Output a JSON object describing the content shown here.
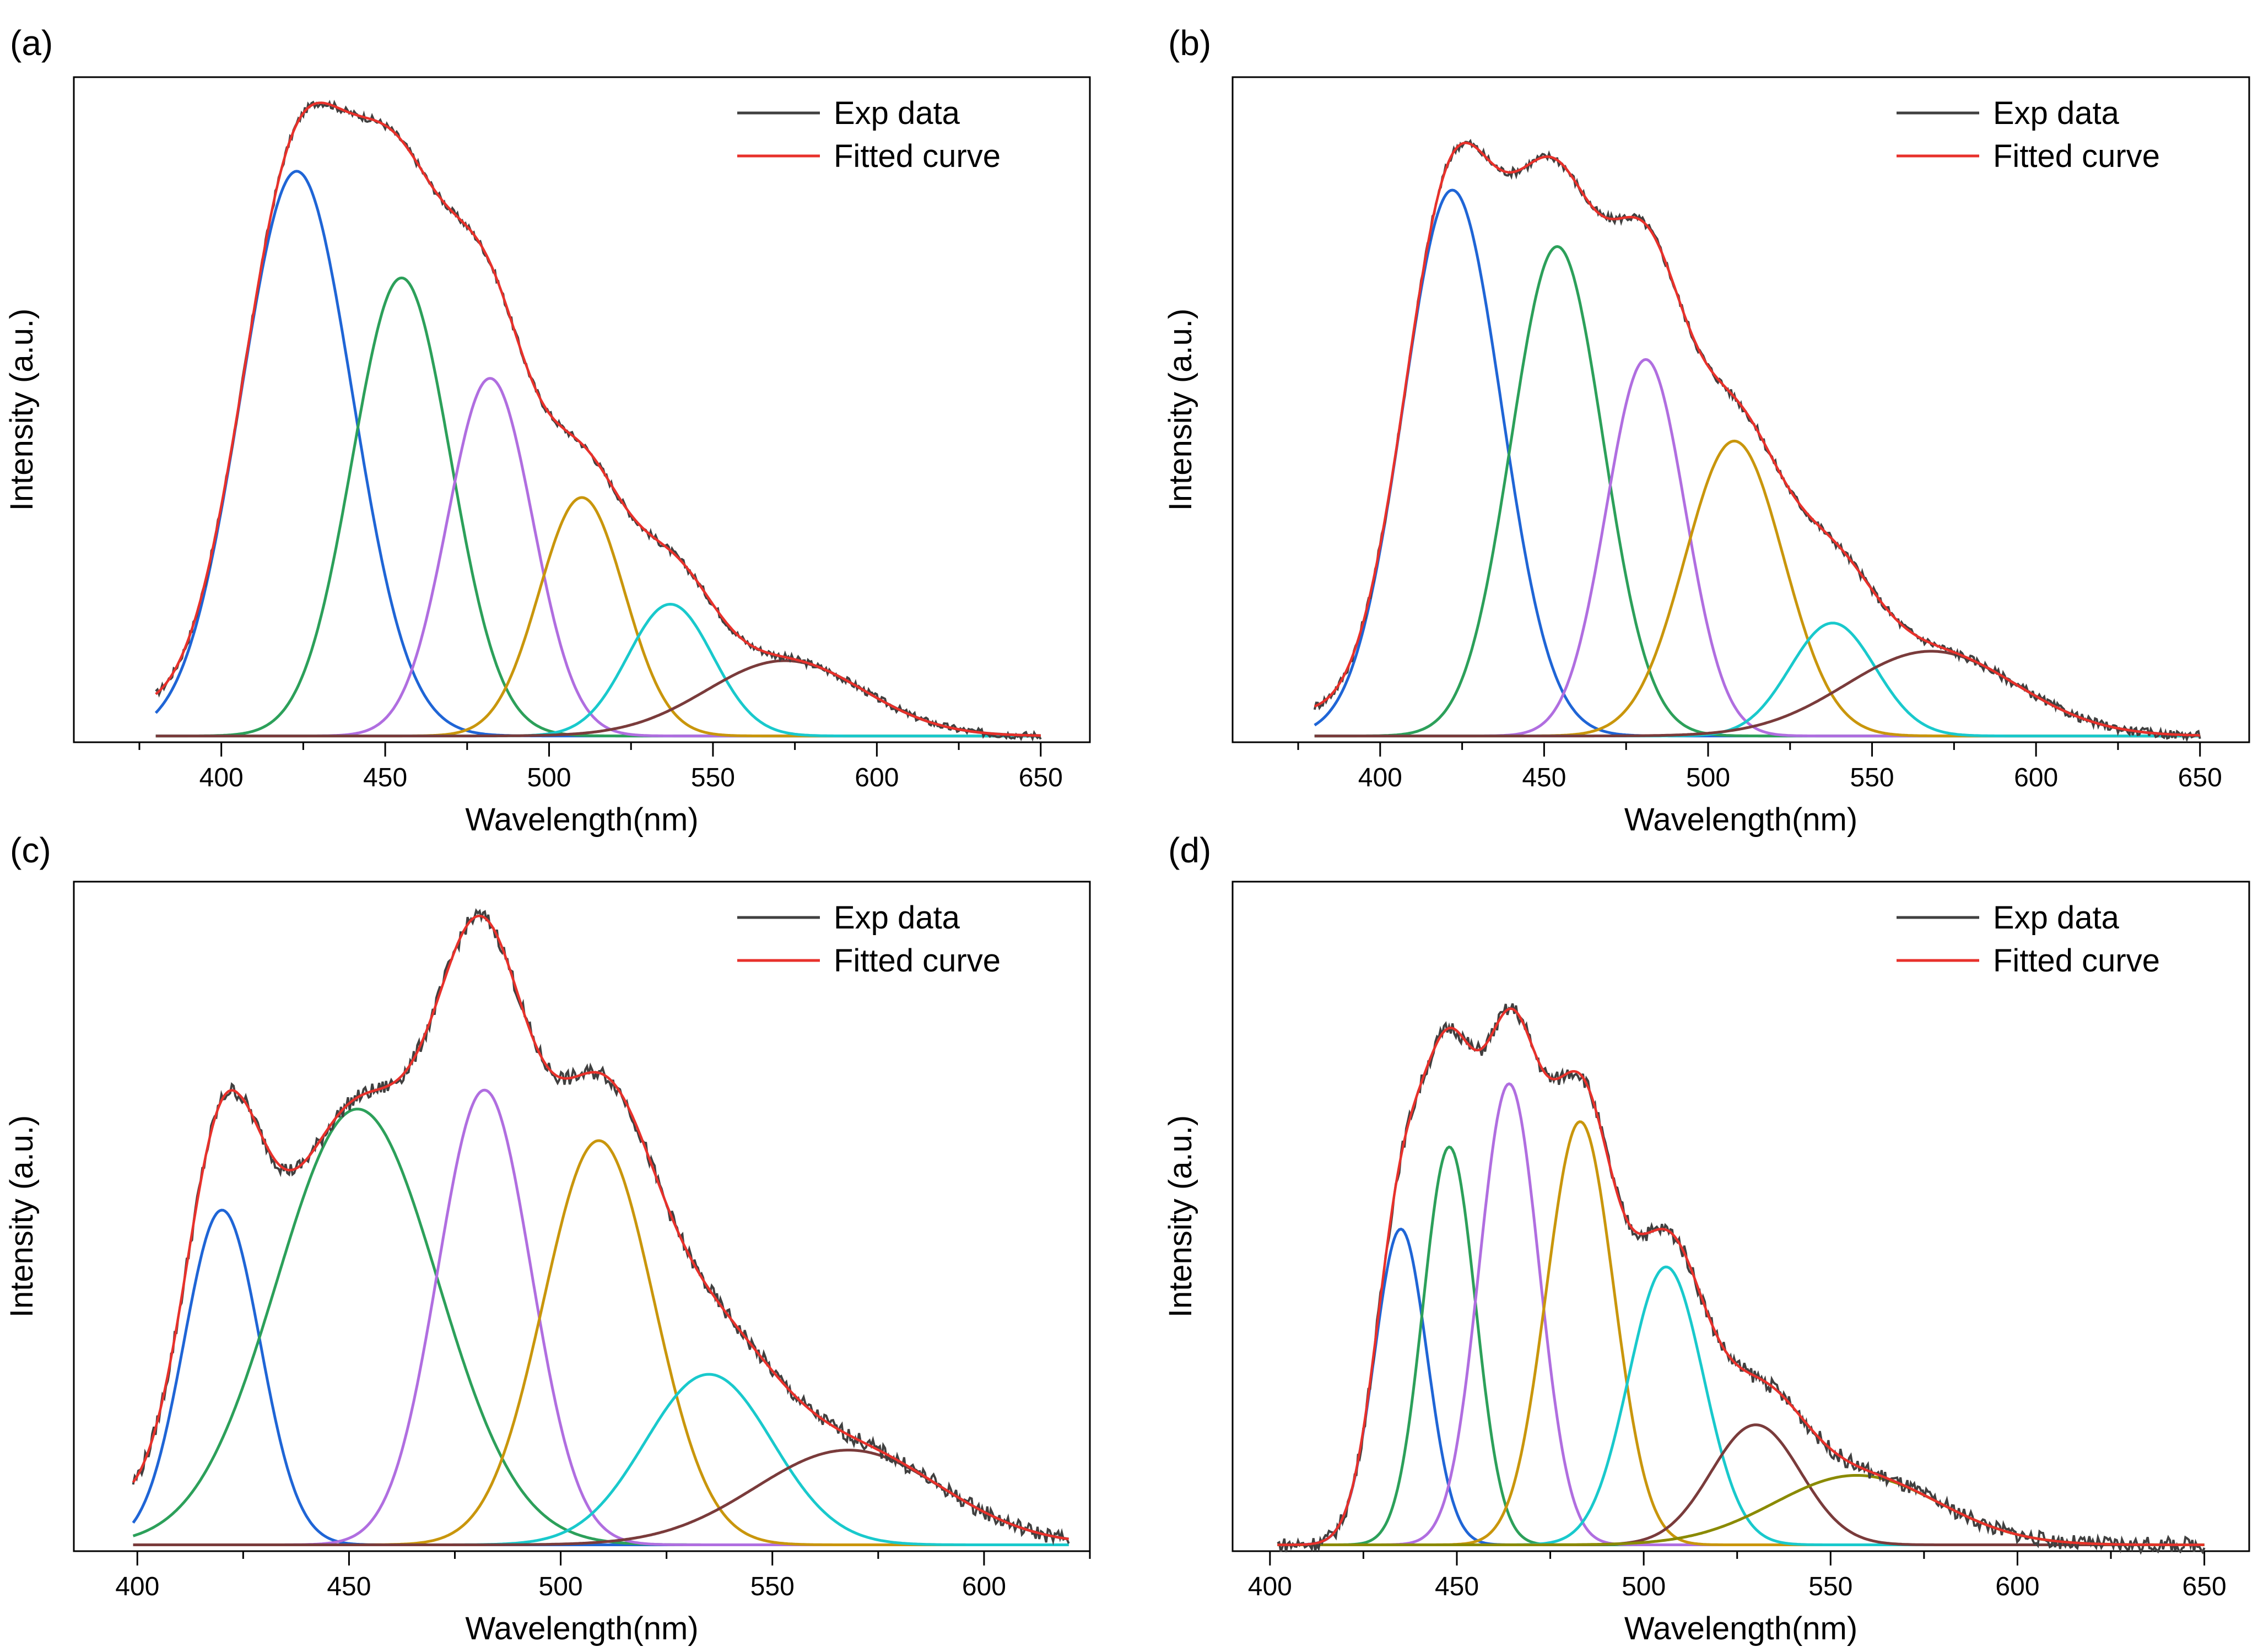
{
  "chart_data": [
    {
      "panel": "(a)",
      "type": "line",
      "xlabel": "Wavelength(nm)",
      "ylabel": "Intensity (a.u.)",
      "xlim": [
        355,
        665
      ],
      "ylim": [
        0,
        1.06
      ],
      "x_ticks": [
        400,
        450,
        500,
        550,
        600,
        650
      ],
      "x_range": [
        380,
        650
      ],
      "legend": {
        "position": "top-right",
        "entries": [
          "Exp data",
          "Fitted curve"
        ]
      },
      "exp_color": "#404040",
      "fit_color": "#e8312b",
      "baseline_start": 0.03,
      "components": [
        {
          "center": 423,
          "amplitude": 0.9,
          "sigma": 17,
          "color": "#1f65d6"
        },
        {
          "center": 455,
          "amplitude": 0.73,
          "sigma": 15,
          "color": "#2ca05a"
        },
        {
          "center": 482,
          "amplitude": 0.57,
          "sigma": 13,
          "color": "#b06ee0"
        },
        {
          "center": 510,
          "amplitude": 0.38,
          "sigma": 13,
          "color": "#c9960c"
        },
        {
          "center": 537,
          "amplitude": 0.21,
          "sigma": 13,
          "color": "#19c9cc"
        },
        {
          "center": 572,
          "amplitude": 0.12,
          "sigma": 24,
          "color": "#7a3b3b"
        }
      ]
    },
    {
      "panel": "(b)",
      "type": "line",
      "xlabel": "Wavelength(nm)",
      "ylabel": "Intensity (a.u.)",
      "xlim": [
        355,
        665
      ],
      "ylim": [
        0,
        1.06
      ],
      "x_ticks": [
        400,
        450,
        500,
        550,
        600,
        650
      ],
      "x_range": [
        380,
        650
      ],
      "legend": {
        "position": "top-right",
        "entries": [
          "Exp data",
          "Fitted curve"
        ]
      },
      "exp_color": "#404040",
      "fit_color": "#e8312b",
      "baseline_start": 0.03,
      "components": [
        {
          "center": 422,
          "amplitude": 0.87,
          "sigma": 15,
          "color": "#1f65d6"
        },
        {
          "center": 454,
          "amplitude": 0.78,
          "sigma": 14,
          "color": "#2ca05a"
        },
        {
          "center": 481,
          "amplitude": 0.6,
          "sigma": 12,
          "color": "#b06ee0"
        },
        {
          "center": 508,
          "amplitude": 0.47,
          "sigma": 15,
          "color": "#c9960c"
        },
        {
          "center": 538,
          "amplitude": 0.18,
          "sigma": 13,
          "color": "#19c9cc"
        },
        {
          "center": 568,
          "amplitude": 0.135,
          "sigma": 26,
          "color": "#7a3b3b"
        }
      ]
    },
    {
      "panel": "(c)",
      "type": "line",
      "xlabel": "Wavelength(nm)",
      "ylabel": "Intensity (a.u.)",
      "xlim": [
        385,
        625
      ],
      "ylim": [
        0,
        1.06
      ],
      "x_ticks": [
        400,
        450,
        500,
        550,
        600
      ],
      "x_range": [
        399,
        620
      ],
      "legend": {
        "position": "top-right",
        "entries": [
          "Exp data",
          "Fitted curve"
        ]
      },
      "exp_color": "#404040",
      "fit_color": "#e8312b",
      "baseline_start": 0.05,
      "components": [
        {
          "center": 420,
          "amplitude": 0.53,
          "sigma": 9,
          "color": "#1f65d6"
        },
        {
          "center": 452,
          "amplitude": 0.69,
          "sigma": 19,
          "color": "#2ca05a"
        },
        {
          "center": 482,
          "amplitude": 0.72,
          "sigma": 11,
          "color": "#b06ee0"
        },
        {
          "center": 509,
          "amplitude": 0.64,
          "sigma": 13,
          "color": "#c9960c"
        },
        {
          "center": 535,
          "amplitude": 0.27,
          "sigma": 15,
          "color": "#19c9cc"
        },
        {
          "center": 568,
          "amplitude": 0.15,
          "sigma": 22,
          "color": "#7a3b3b"
        }
      ]
    },
    {
      "panel": "(d)",
      "type": "line",
      "xlabel": "Wavelength(nm)",
      "ylabel": "Intensity (a.u.)",
      "xlim": [
        390,
        662
      ],
      "ylim": [
        0,
        1.06
      ],
      "x_ticks": [
        400,
        450,
        500,
        550,
        600,
        650
      ],
      "x_range": [
        402,
        650
      ],
      "legend": {
        "position": "top-right",
        "entries": [
          "Exp data",
          "Fitted curve"
        ]
      },
      "exp_color": "#404040",
      "fit_color": "#e8312b",
      "baseline_start": 0.0,
      "components": [
        {
          "center": 435,
          "amplitude": 0.5,
          "sigma": 7,
          "color": "#1f65d6"
        },
        {
          "center": 448,
          "amplitude": 0.63,
          "sigma": 7,
          "color": "#2ca05a"
        },
        {
          "center": 464,
          "amplitude": 0.73,
          "sigma": 8,
          "color": "#b06ee0"
        },
        {
          "center": 483,
          "amplitude": 0.67,
          "sigma": 9,
          "color": "#c9960c"
        },
        {
          "center": 506,
          "amplitude": 0.44,
          "sigma": 10,
          "color": "#19c9cc"
        },
        {
          "center": 530,
          "amplitude": 0.19,
          "sigma": 12,
          "color": "#7a3b3b"
        },
        {
          "center": 557,
          "amplitude": 0.11,
          "sigma": 22,
          "color": "#8a8a00"
        }
      ]
    }
  ]
}
